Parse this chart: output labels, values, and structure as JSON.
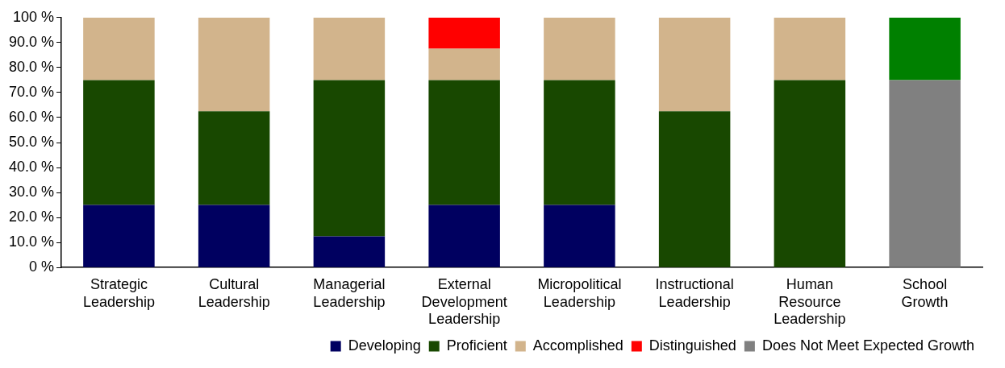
{
  "chart_data": {
    "type": "bar",
    "stacked": true,
    "categories": [
      "Strategic Leadership",
      "Cultural Leadership",
      "Managerial Leadership",
      "External Development Leadership",
      "Micropolitical Leadership",
      "Instructional Leadership",
      "Human Resource Leadership",
      "School Growth"
    ],
    "series": [
      {
        "name": "Developing",
        "color": "#000060",
        "values": [
          25,
          25,
          12.5,
          25,
          25,
          0,
          0,
          0
        ]
      },
      {
        "name": "Proficient",
        "color": "#184800",
        "values": [
          50,
          37.5,
          62.5,
          50,
          50,
          62.5,
          75,
          0
        ]
      },
      {
        "name": "Accomplished",
        "color": "#d2b48c",
        "values": [
          25,
          37.5,
          25,
          12.5,
          25,
          37.5,
          25,
          0
        ]
      },
      {
        "name": "Distinguished",
        "color": "#ff0000",
        "values": [
          0,
          0,
          0,
          12.5,
          0,
          0,
          0,
          0
        ]
      },
      {
        "name": "Does Not Meet Expected Growth",
        "color": "#808080",
        "values": [
          0,
          0,
          0,
          0,
          0,
          0,
          0,
          75
        ]
      },
      {
        "color": "#008000",
        "values": [
          0,
          0,
          0,
          0,
          0,
          0,
          0,
          25
        ]
      }
    ],
    "ylim": [
      0,
      100
    ],
    "yticks": [
      {
        "value": 0,
        "label": "0 %"
      },
      {
        "value": 10,
        "label": "10.0 %"
      },
      {
        "value": 20,
        "label": "20.0 %"
      },
      {
        "value": 30,
        "label": "30.0 %"
      },
      {
        "value": 40,
        "label": "40.0 %"
      },
      {
        "value": 50,
        "label": "50.0 %"
      },
      {
        "value": 60,
        "label": "60.0 %"
      },
      {
        "value": 70,
        "label": "70.0 %"
      },
      {
        "value": 80,
        "label": "80.0 %"
      },
      {
        "value": 90,
        "label": "90.0 %"
      },
      {
        "value": 100,
        "label": "100 %"
      }
    ],
    "grid": false,
    "legend": "bottom right"
  }
}
